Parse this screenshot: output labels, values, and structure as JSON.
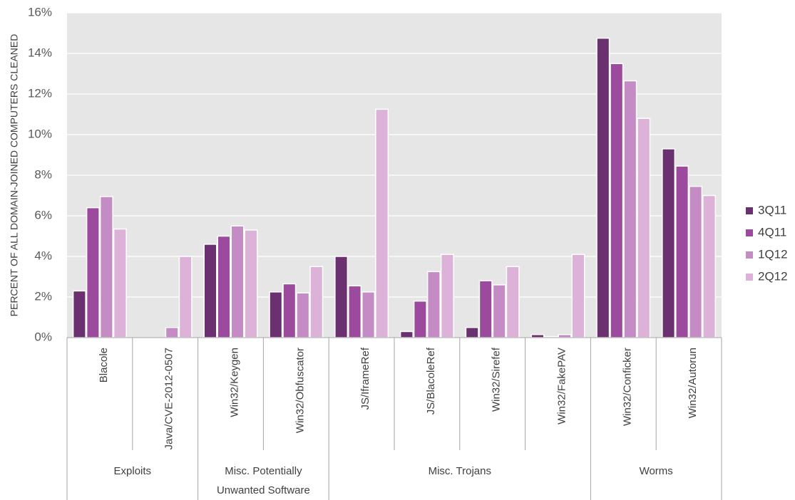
{
  "chart_data": {
    "type": "bar",
    "title": "",
    "ylabel": "PERCENT OF ALL DOMAIN-JOINED COMPUTERS CLEANED",
    "ylim": [
      0,
      16
    ],
    "yticks": [
      "0%",
      "2%",
      "4%",
      "6%",
      "8%",
      "10%",
      "12%",
      "14%",
      "16%"
    ],
    "grid": true,
    "legend_position": "right",
    "categories": [
      "Blacole",
      "Java/CVE-2012-0507",
      "Win32/Keygen",
      "Win32/Obfuscator",
      "JS/IframeRef",
      "JS/BlacoleRef",
      "Win32/Sirefef",
      "Win32/FakePAV",
      "Win32/Conficker",
      "Win32/Autorun"
    ],
    "groups": [
      {
        "label": "Exploits",
        "count": 2
      },
      {
        "label": "Misc. Potentially Unwanted Software",
        "lines": [
          "Misc. Potentially",
          "Unwanted Software"
        ],
        "count": 2
      },
      {
        "label": "Misc. Trojans",
        "count": 4
      },
      {
        "label": "Worms",
        "count": 2
      }
    ],
    "series": [
      {
        "name": "3Q11",
        "color": "#6b3070",
        "values": [
          2.3,
          0.0,
          4.6,
          2.25,
          4.0,
          0.3,
          0.5,
          0.15,
          14.75,
          9.3
        ]
      },
      {
        "name": "4Q11",
        "color": "#9b4a9e",
        "values": [
          6.4,
          0.0,
          5.0,
          2.65,
          2.55,
          1.8,
          2.8,
          0.05,
          13.5,
          8.45
        ]
      },
      {
        "name": "1Q12",
        "color": "#c48bc4",
        "values": [
          6.95,
          0.5,
          5.5,
          2.2,
          2.25,
          3.25,
          2.6,
          0.15,
          12.65,
          7.45
        ]
      },
      {
        "name": "2Q12",
        "color": "#dcb2d8",
        "values": [
          5.35,
          4.0,
          5.3,
          3.5,
          11.25,
          4.1,
          3.5,
          4.1,
          10.8,
          7.0
        ]
      }
    ]
  },
  "colors": {
    "plot_background": "#e6e6e6",
    "gridline": "#ffffff",
    "axis_line": "#a6a6a6"
  }
}
